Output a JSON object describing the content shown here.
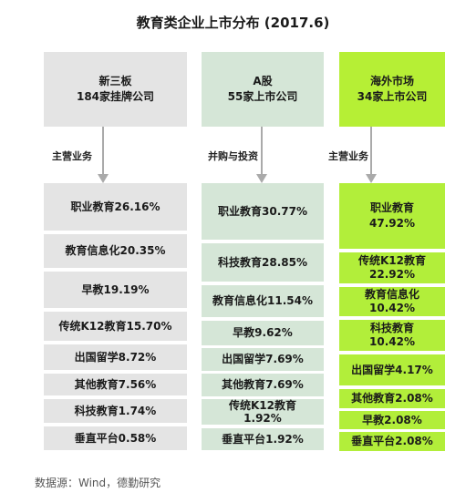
{
  "title": "教育类企业上市分布 (2017.6)",
  "columns": [
    {
      "head_line1": "新三板",
      "head_line2": "184家挂牌公司",
      "label": "主营业务",
      "items": [
        [
          "职业教育26.16%"
        ],
        [
          "教育信息化20.35%"
        ],
        [
          "早教19.19%"
        ],
        [
          "传统K12教育15.70%"
        ],
        [
          "出国留学8.72%"
        ],
        [
          "其他教育7.56%"
        ],
        [
          "科技教育1.74%"
        ],
        [
          "垂直平台0.58%"
        ]
      ]
    },
    {
      "head_line1": "A股",
      "head_line2": "55家上市公司",
      "label": "并购与投资",
      "items": [
        [
          "职业教育30.77%"
        ],
        [
          "科技教育28.85%"
        ],
        [
          "教育信息化11.54%"
        ],
        [
          "早教9.62%"
        ],
        [
          "出国留学7.69%"
        ],
        [
          "其他教育7.69%"
        ],
        [
          "传统K12教育",
          "1.92%"
        ],
        [
          "垂直平台1.92%"
        ]
      ]
    },
    {
      "head_line1": "海外市场",
      "head_line2": "34家上市公司",
      "label": "主营业务",
      "items": [
        [
          "职业教育",
          "47.92%"
        ],
        [
          "传统K12教育",
          "22.92%"
        ],
        [
          "教育信息化",
          "10.42%"
        ],
        [
          "科技教育",
          "10.42%"
        ],
        [
          "出国留学4.17%"
        ],
        [
          "其他教育2.08%"
        ],
        [
          "早教2.08%"
        ],
        [
          "垂直平台2.08%"
        ]
      ]
    }
  ],
  "footer": "数据源：Wind，德勤研究",
  "colors": {
    "grey": "#e4e4e4",
    "light_green": "#d5e6d7",
    "lime": "#b2ee3a",
    "arrow": "#aaaaaa"
  }
}
